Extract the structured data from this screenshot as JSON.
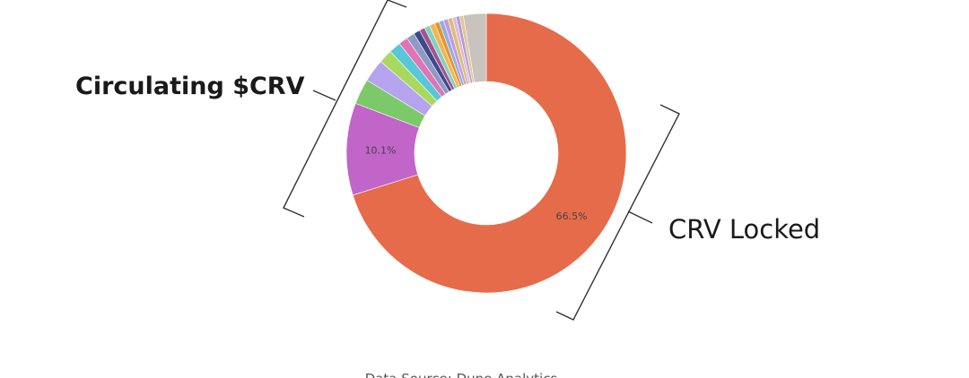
{
  "chart_data": {
    "type": "pie",
    "donut": true,
    "slices": [
      {
        "value": 66.5,
        "label": "66.5%",
        "color": "#E66B4B"
      },
      {
        "value": 10.1,
        "label": "10.1%",
        "color": "#C165C9"
      },
      {
        "value": 2.8,
        "label": "",
        "color": "#7CC96A"
      },
      {
        "value": 2.5,
        "label": "",
        "color": "#B5A3EE"
      },
      {
        "value": 1.5,
        "label": "",
        "color": "#A9D85F"
      },
      {
        "value": 1.3,
        "label": "",
        "color": "#56C8D8"
      },
      {
        "value": 1.0,
        "label": "",
        "color": "#DF74B6"
      },
      {
        "value": 0.9,
        "label": "",
        "color": "#8F9AC4"
      },
      {
        "value": 0.7,
        "label": "",
        "color": "#3C4A8C"
      },
      {
        "value": 0.6,
        "label": "",
        "color": "#A6528E"
      },
      {
        "value": 0.6,
        "label": "",
        "color": "#7DD3C0"
      },
      {
        "value": 0.6,
        "label": "",
        "color": "#F3B553"
      },
      {
        "value": 0.5,
        "label": "",
        "color": "#E8932F"
      },
      {
        "value": 0.5,
        "label": "",
        "color": "#8BB0E8"
      },
      {
        "value": 0.5,
        "label": "",
        "color": "#C49BDB"
      },
      {
        "value": 0.5,
        "label": "",
        "color": "#D6C07A"
      },
      {
        "value": 0.4,
        "label": "",
        "color": "#E5B5D5"
      },
      {
        "value": 0.4,
        "label": "",
        "color": "#A7A0D8"
      },
      {
        "value": 0.4,
        "label": "",
        "color": "#E6C48F"
      },
      {
        "value": 2.5,
        "label": "",
        "color": "#C9C3BE"
      }
    ],
    "slice_label_color": "#444444",
    "annotations": {
      "circulating": "Circulating $CRV",
      "locked": "CRV Locked",
      "source": "Data Source: Dune Analytics"
    }
  }
}
